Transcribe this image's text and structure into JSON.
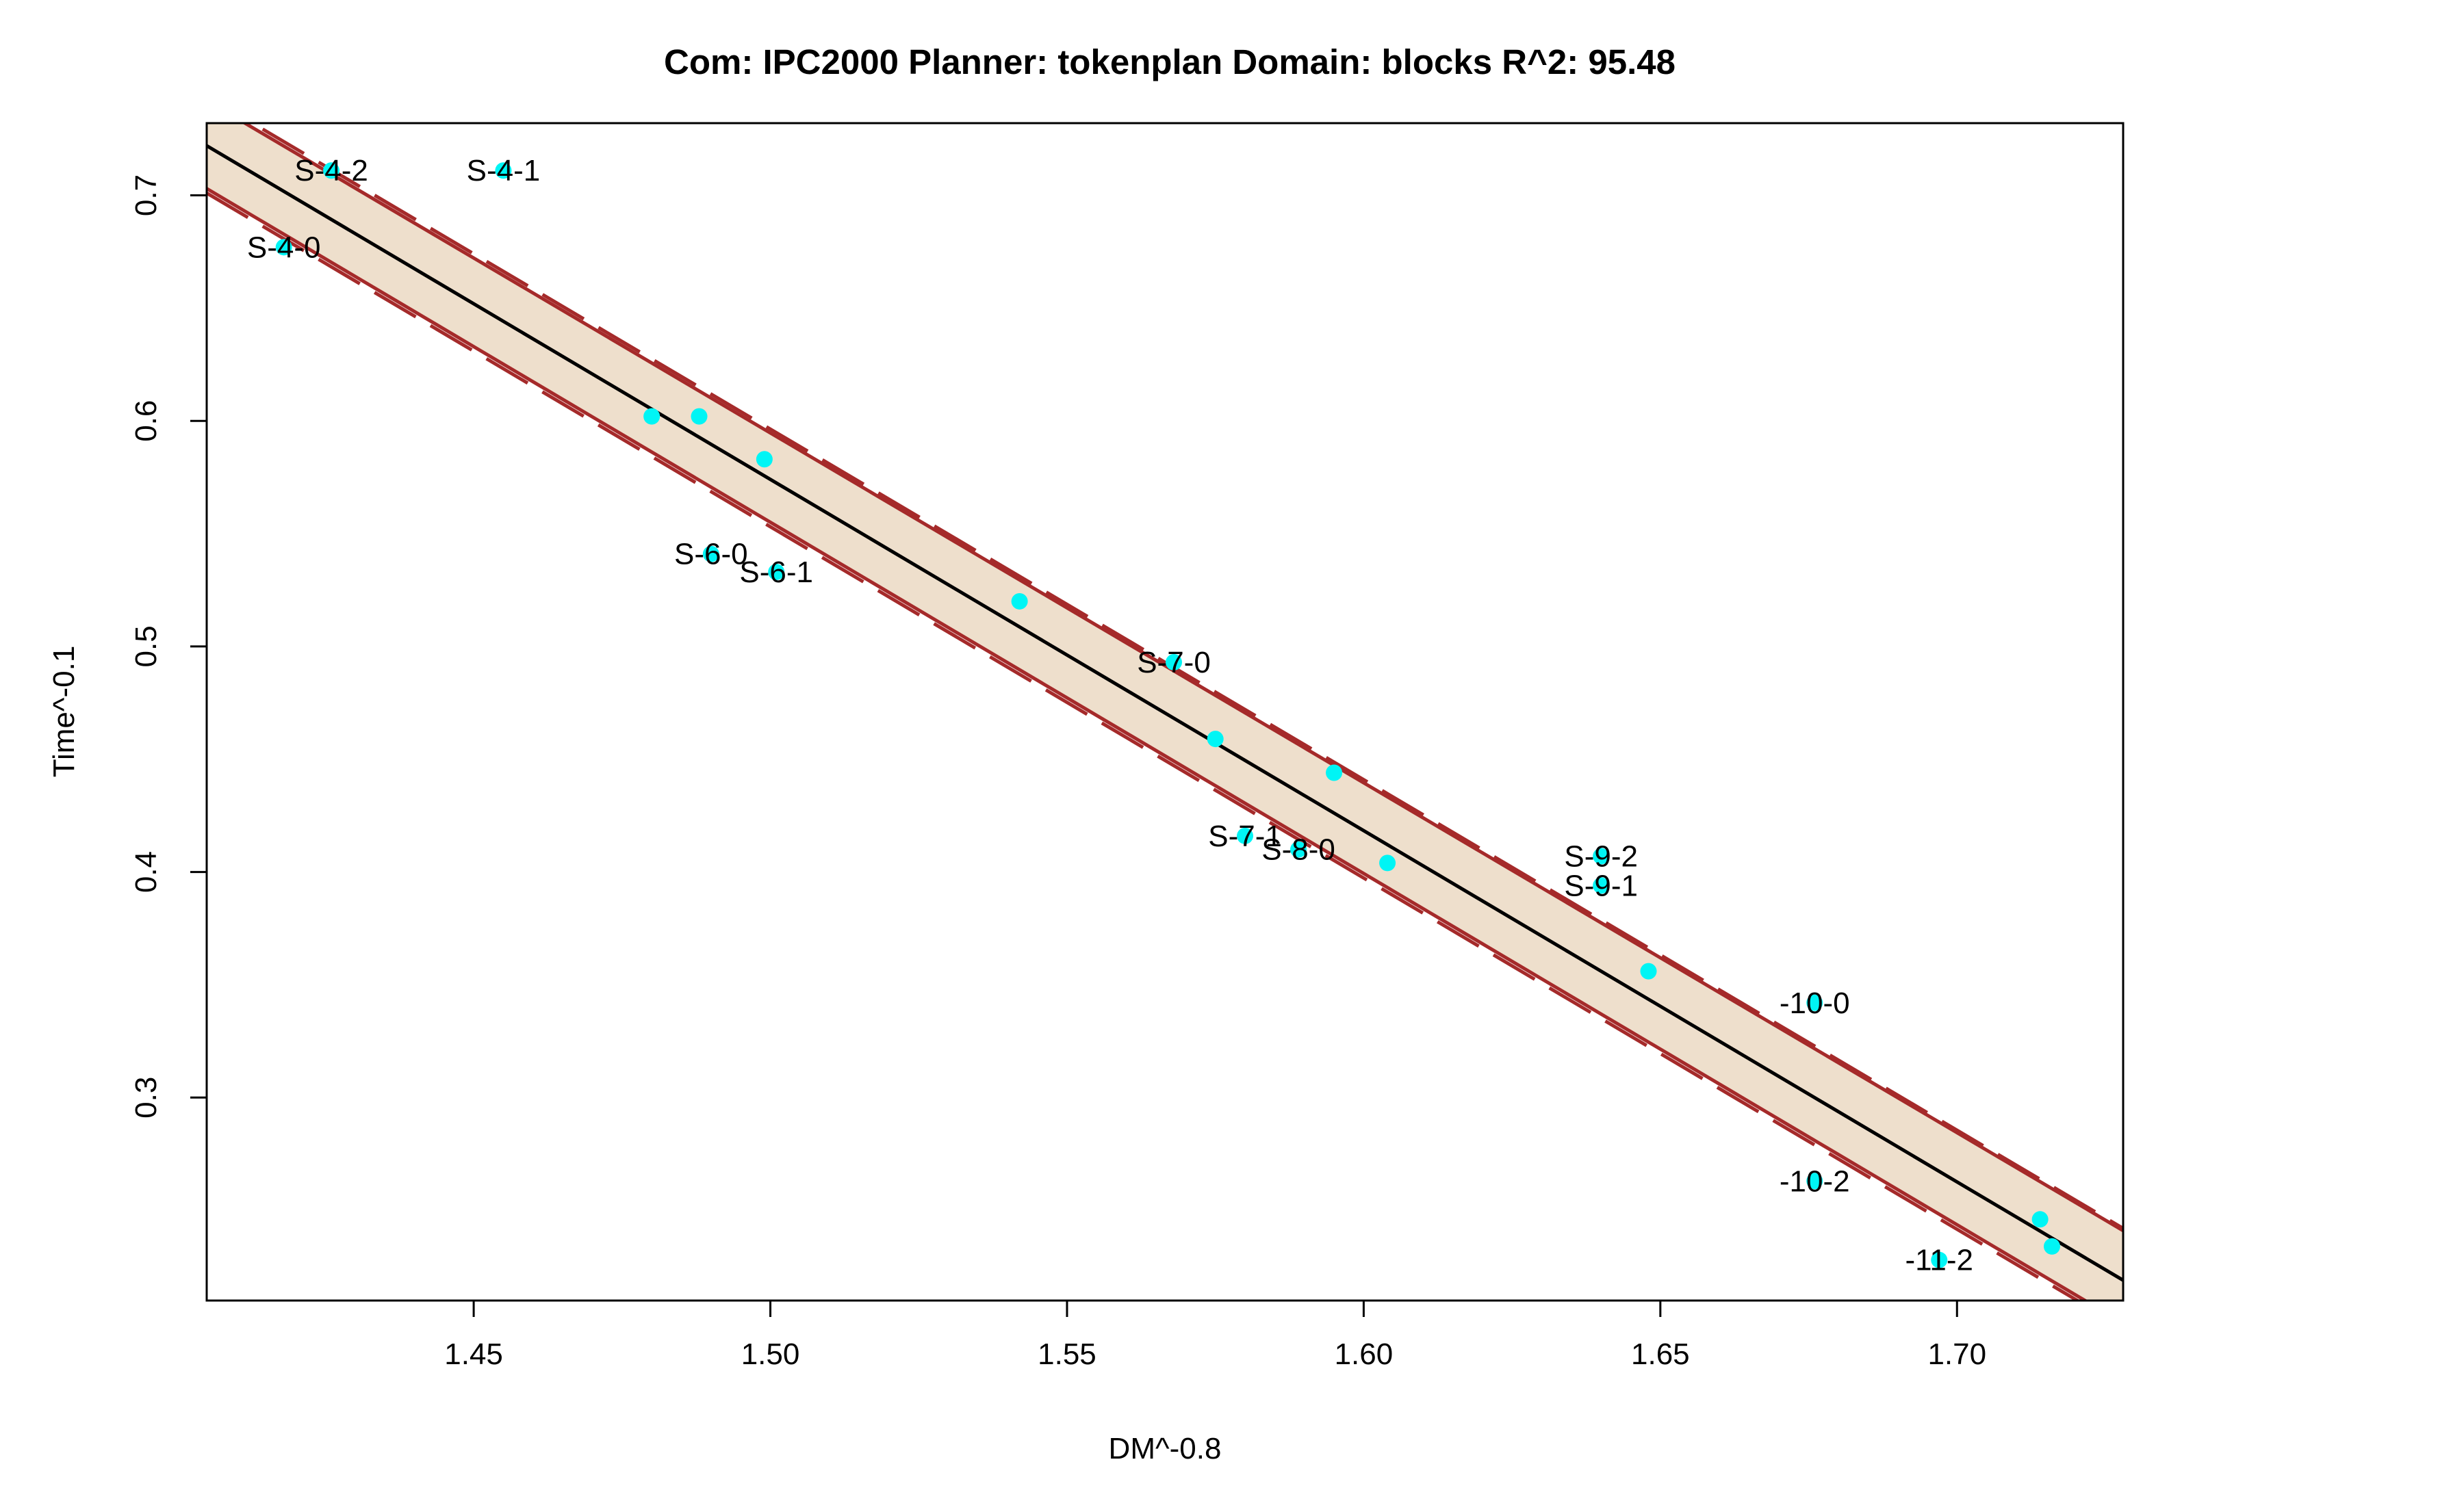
{
  "chart_data": {
    "type": "scatter",
    "title": "Com: IPC2000 Planner: tokenplan Domain: blocks R^2: 95.48",
    "xlabel": "DM^-0.8",
    "ylabel": "Time^-0.1",
    "xlim": [
      1.405,
      1.728
    ],
    "ylim": [
      0.21,
      0.732
    ],
    "xticks": [
      1.45,
      1.5,
      1.55,
      1.6,
      1.65,
      1.7
    ],
    "xtick_labels": [
      "1.45",
      "1.50",
      "1.55",
      "1.60",
      "1.65",
      "1.70"
    ],
    "yticks": [
      0.3,
      0.4,
      0.5,
      0.6,
      0.7
    ],
    "ytick_labels": [
      "0.3",
      "0.4",
      "0.5",
      "0.6",
      "0.7"
    ],
    "grid": false,
    "colors": {
      "points": "#00f5f5",
      "band_fill": "#eedfcc",
      "band_border": "#a52a2a",
      "fit_line": "#000000",
      "frame": "#000000"
    },
    "fit_line": {
      "x": [
        1.405,
        1.728
      ],
      "y": [
        0.722,
        0.219
      ]
    },
    "band_upper_solid": {
      "x": [
        1.405,
        1.728
      ],
      "y": [
        0.742,
        0.241
      ]
    },
    "band_lower_solid": {
      "x": [
        1.405,
        1.728
      ],
      "y": [
        0.703,
        0.2
      ]
    },
    "band_upper_dashed": {
      "x": [
        1.405,
        1.728
      ],
      "y": [
        0.744,
        0.242
      ]
    },
    "band_lower_dashed": {
      "x": [
        1.405,
        1.728
      ],
      "y": [
        0.701,
        0.198
      ]
    },
    "points": [
      {
        "x": 1.418,
        "y": 0.677,
        "label": "S-4-0"
      },
      {
        "x": 1.426,
        "y": 0.711,
        "label": "S-4-2"
      },
      {
        "x": 1.455,
        "y": 0.711,
        "label": "S-4-1"
      },
      {
        "x": 1.48,
        "y": 0.602,
        "label": ""
      },
      {
        "x": 1.488,
        "y": 0.602,
        "label": ""
      },
      {
        "x": 1.499,
        "y": 0.583,
        "label": ""
      },
      {
        "x": 1.49,
        "y": 0.541,
        "label": "S-6-0"
      },
      {
        "x": 1.501,
        "y": 0.533,
        "label": "S-6-1"
      },
      {
        "x": 1.542,
        "y": 0.52,
        "label": ""
      },
      {
        "x": 1.568,
        "y": 0.493,
        "label": "S-7-0"
      },
      {
        "x": 1.575,
        "y": 0.459,
        "label": ""
      },
      {
        "x": 1.595,
        "y": 0.444,
        "label": ""
      },
      {
        "x": 1.58,
        "y": 0.416,
        "label": "S-7-1"
      },
      {
        "x": 1.589,
        "y": 0.41,
        "label": "S-8-0"
      },
      {
        "x": 1.604,
        "y": 0.404,
        "label": ""
      },
      {
        "x": 1.64,
        "y": 0.407,
        "label": "S-9-2"
      },
      {
        "x": 1.64,
        "y": 0.394,
        "label": "S-9-1"
      },
      {
        "x": 1.648,
        "y": 0.356,
        "label": ""
      },
      {
        "x": 1.676,
        "y": 0.342,
        "label": "-10-0"
      },
      {
        "x": 1.676,
        "y": 0.263,
        "label": "-10-2"
      },
      {
        "x": 1.697,
        "y": 0.228,
        "label": "-11-2"
      },
      {
        "x": 1.714,
        "y": 0.246,
        "label": ""
      },
      {
        "x": 1.716,
        "y": 0.234,
        "label": ""
      }
    ]
  }
}
